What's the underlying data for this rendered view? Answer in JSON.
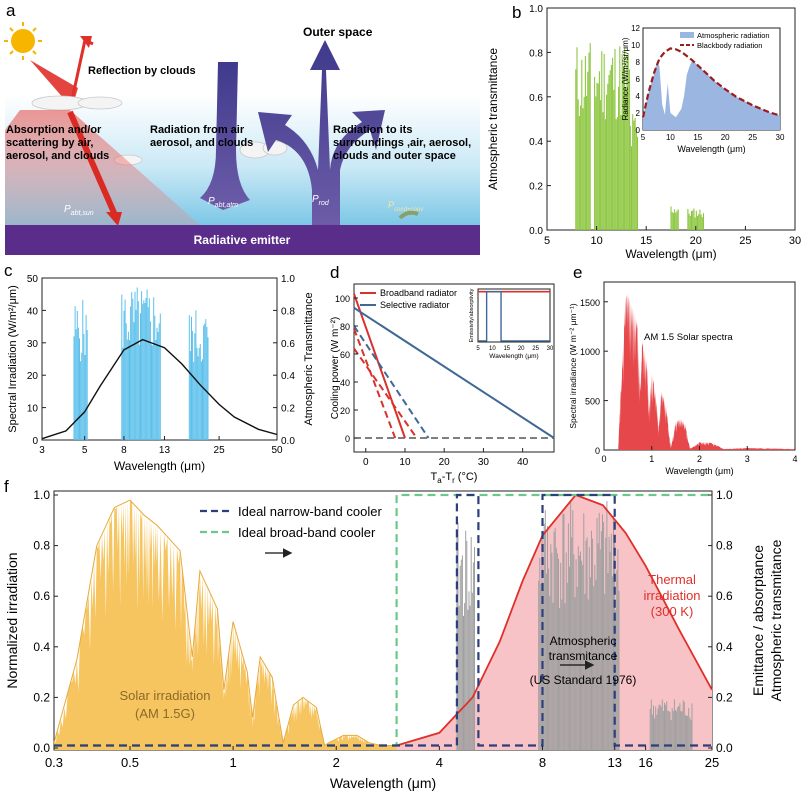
{
  "colors": {
    "sky_top": "#ffffff",
    "sky_bottom": "#8fd0ea",
    "emitter": "#5a2d8a",
    "arrow_purple": "#53489a",
    "sun_red": "#e0302a",
    "green": "#8cc63f",
    "inset_fill": "#9bb6e0",
    "inset_line": "#9b1c1c",
    "cyan": "#5bc0eb",
    "red": "#d9312b",
    "blue": "#3f6896",
    "solar_fill": "#f6c560",
    "solar_line": "#e8a93a",
    "thermal_fill": "#f7c3c7",
    "thermal_line": "#e0302a",
    "grey": "#a0a0a0",
    "navy": "#2b3f7a",
    "green_dash": "#6cc88a"
  },
  "panel_a": {
    "letter": "a",
    "reflection": "Reflection by clouds",
    "outer_space": "Outer space",
    "absorption": [
      "Absorption and/or",
      "scattering by air,",
      "aerosol, and clouds"
    ],
    "radiation_air": [
      "Radiation from air",
      "aerosol, and clouds"
    ],
    "radiation_to": [
      "Radiation to its",
      "surroundings ,air, aerosol,",
      "clouds and outer space"
    ],
    "p_sun": "P",
    "p_sun_sub": "abt,sun",
    "p_atm": "P",
    "p_atm_sub": "abt,atm",
    "p_rod": "P",
    "p_rod_sub": "rod",
    "p_cond": "P",
    "p_cond_sub": "cond+conv",
    "emitter": "Radiative emitter"
  },
  "chart_data": [
    {
      "id": "b",
      "type": "area",
      "letter": "b",
      "xlabel": "Wavelength (μm)",
      "ylabel": "Atmospheric transmittance",
      "xlim": [
        5,
        30
      ],
      "ylim": [
        0,
        1
      ],
      "x_ticks": [
        "5",
        "10",
        "15",
        "20",
        "25",
        "30"
      ],
      "y_ticks": [
        "0.0",
        "0.2",
        "0.4",
        "0.6",
        "0.8",
        "1.0"
      ],
      "series": [
        {
          "name": "Atmospheric transmittance",
          "x": [
            7.9,
            8.5,
            9,
            9.4,
            9.6,
            9.8,
            10.5,
            11,
            12,
            12.8,
            13.2,
            13.8,
            14.2,
            16,
            17.5,
            18,
            19,
            20,
            21
          ],
          "values": [
            0.05,
            0.82,
            0.85,
            0.72,
            0.4,
            0.82,
            0.87,
            0.86,
            0.82,
            0.75,
            0.7,
            0.35,
            0.1,
            0.02,
            0.06,
            0.12,
            0.08,
            0.1,
            0.03
          ]
        }
      ],
      "inset": {
        "type": "line",
        "xlabel": "Wavelength (μm)",
        "ylabel": "Radiance (W/m²/sr/μm)",
        "xlim": [
          5,
          30
        ],
        "ylim": [
          0,
          12
        ],
        "x_ticks": [
          "5",
          "10",
          "15",
          "20",
          "25",
          "30"
        ],
        "y_ticks": [
          "0",
          "2",
          "4",
          "6",
          "8",
          "10",
          "12"
        ],
        "legend": [
          "Atmospheric radiation",
          "Blackbody radiation"
        ],
        "series": [
          {
            "name": "Blackbody radiation",
            "x": [
              5,
              6,
              7,
              8,
              9,
              10,
              11,
              12,
              14,
              16,
              18,
              20,
              22,
              25,
              28,
              30
            ],
            "values": [
              1.5,
              4.4,
              6.7,
              8.4,
              9.2,
              9.6,
              9.5,
              9.2,
              8.2,
              7.0,
              5.8,
              4.8,
              3.9,
              2.9,
              2.1,
              1.7
            ]
          },
          {
            "name": "Atmospheric radiation",
            "x": [
              5,
              6,
              7,
              7.5,
              8,
              8.5,
              9,
              9.5,
              10,
              11,
              12,
              12.5,
              13,
              13.5,
              14,
              16,
              18,
              20,
              22,
              25,
              28,
              30
            ],
            "values": [
              1.5,
              4.4,
              6.6,
              8.0,
              7.5,
              3.0,
              1.8,
              5.5,
              2.0,
              1.5,
              2.5,
              4.0,
              6.5,
              7.5,
              8.2,
              7.0,
              5.8,
              4.8,
              3.9,
              2.9,
              2.1,
              1.7
            ]
          }
        ]
      }
    },
    {
      "id": "c",
      "type": "line",
      "letter": "c",
      "xlabel": "Wavelength (μm)",
      "ylabel": "Spectral Irradiation (W/m²/μm)",
      "ylabel2": "Atmospheric Transmittance",
      "ylim": [
        0,
        50
      ],
      "ylim2": [
        0,
        1
      ],
      "x_ticks": [
        "3",
        "5",
        "8",
        "13",
        "25",
        "50"
      ],
      "y_ticks": [
        "0",
        "10",
        "20",
        "30",
        "40",
        "50"
      ],
      "y2_ticks": [
        "0.0",
        "0.2",
        "0.4",
        "0.6",
        "0.8",
        "1.0"
      ],
      "series": [
        {
          "name": "Blackbody irradiation",
          "x": [
            3,
            4,
            5,
            6,
            8,
            10,
            13,
            16,
            20,
            25,
            30,
            40,
            50
          ],
          "values": [
            0.4,
            2.8,
            8.7,
            16.5,
            27.8,
            31,
            28.5,
            23.5,
            16.9,
            11,
            7.1,
            3.3,
            1.7
          ]
        },
        {
          "name": "Atmospheric transmittance",
          "bands": [
            [
              4.4,
              5.2,
              0.87
            ],
            [
              7.8,
              12.5,
              0.96
            ],
            [
              17.5,
              22,
              0.82
            ]
          ]
        }
      ]
    },
    {
      "id": "d",
      "type": "line",
      "letter": "d",
      "xlabel": "Ta-Tr (°C)",
      "xlabel_main": "T",
      "xlabel_sub1": "a",
      "xlabel_mid": "-T",
      "xlabel_sub2": "r",
      "xlabel_unit": " (°C)",
      "ylabel": "Cooling power (W m⁻²)",
      "xlim": [
        -3,
        48
      ],
      "ylim": [
        -10,
        110
      ],
      "x_ticks": [
        "0",
        "10",
        "20",
        "30",
        "40"
      ],
      "y_ticks": [
        "0",
        "20",
        "40",
        "60",
        "80",
        "100"
      ],
      "legend": [
        "Broadband radiator",
        "Selective radiator"
      ],
      "series": [
        {
          "name": "Broadband radiator",
          "x": [
            -3,
            10
          ],
          "values": [
            103,
            0
          ]
        },
        {
          "name": "Broadband radiator (dashed)",
          "x": [
            -3,
            7.5
          ],
          "values": [
            78,
            0
          ]
        },
        {
          "name": "Selective radiator",
          "x": [
            -3,
            48
          ],
          "values": [
            93,
            0
          ]
        },
        {
          "name": "Selective radiator (dashed 1)",
          "x": [
            -3,
            16
          ],
          "values": [
            80,
            0
          ]
        },
        {
          "name": "Selective radiator (dashed 2)",
          "x": [
            -3,
            13
          ],
          "values": [
            64,
            0
          ]
        }
      ],
      "inset": {
        "ylabel": "Emissivity/absorptivity",
        "xlabel": "Wavelength (μm)",
        "x_ticks": [
          "5",
          "10",
          "15",
          "20",
          "25",
          "30"
        ],
        "ylim": [
          0,
          1
        ]
      }
    },
    {
      "id": "e",
      "type": "area",
      "letter": "e",
      "title": "AM 1.5 Solar spectra",
      "xlabel": "Wavelength (μm)",
      "ylabel": "Spectral irradiance (W m⁻² μm⁻¹)",
      "xlim": [
        0,
        4
      ],
      "ylim": [
        0,
        1700
      ],
      "x_ticks": [
        "0",
        "1",
        "2",
        "3",
        "4"
      ],
      "y_ticks": [
        "0",
        "500",
        "1000",
        "1500"
      ],
      "series": [
        {
          "name": "AM 1.5",
          "x": [
            0.3,
            0.35,
            0.45,
            0.5,
            0.55,
            0.6,
            0.7,
            0.76,
            0.8,
            0.9,
            0.94,
            1.0,
            1.1,
            1.14,
            1.2,
            1.3,
            1.4,
            1.5,
            1.6,
            1.7,
            1.8,
            1.9,
            2.0,
            2.2,
            2.4,
            2.5,
            3.0,
            4.0
          ],
          "values": [
            50,
            600,
            1550,
            1600,
            1500,
            1450,
            1280,
            600,
            1100,
            900,
            400,
            800,
            500,
            200,
            600,
            450,
            20,
            280,
            320,
            260,
            15,
            40,
            80,
            80,
            40,
            10,
            20,
            10
          ]
        }
      ]
    },
    {
      "id": "f",
      "type": "area",
      "letter": "f",
      "xlabel": "Wavelength (μm)",
      "ylabel": "Normalized irradiation",
      "ylabel2a": "Emittance / absorptance",
      "ylabel2b": "Atmospheric transmitance",
      "ylim": [
        0,
        1
      ],
      "x_ticks": [
        "0.3",
        "0.5",
        "1",
        "2",
        "4",
        "8",
        "13",
        "16",
        "25"
      ],
      "y_ticks": [
        "0.0",
        "0.2",
        "0.4",
        "0.6",
        "0.8",
        "1.0"
      ],
      "legend": [
        "Ideal narrow-band cooler",
        "Ideal broad-band cooler"
      ],
      "labels": {
        "thermal": [
          "Thermal",
          "irradiation",
          "(300 K)"
        ],
        "atm": [
          "Atmospheric",
          "transmitance",
          "(US Standard 1976)"
        ],
        "solar": [
          "Solar irradiation",
          "(AM 1.5G)"
        ]
      },
      "series": [
        {
          "name": "Solar irradiation (AM 1.5G)",
          "x": [
            0.3,
            0.35,
            0.4,
            0.45,
            0.5,
            0.55,
            0.6,
            0.7,
            0.76,
            0.8,
            0.9,
            0.94,
            1.0,
            1.1,
            1.14,
            1.2,
            1.3,
            1.4,
            1.5,
            1.6,
            1.75,
            1.85,
            1.9,
            2.1,
            2.3,
            2.5,
            2.7,
            3.0
          ],
          "values": [
            0.02,
            0.35,
            0.8,
            0.95,
            0.98,
            0.92,
            0.88,
            0.78,
            0.36,
            0.7,
            0.55,
            0.23,
            0.5,
            0.3,
            0.12,
            0.36,
            0.28,
            0.02,
            0.17,
            0.2,
            0.16,
            0.01,
            0.02,
            0.05,
            0.05,
            0.02,
            0.01,
            0.01
          ]
        },
        {
          "name": "Thermal irradiation (300 K)",
          "x": [
            3,
            4,
            5,
            6,
            7,
            8,
            10,
            12,
            14,
            16,
            20,
            25
          ],
          "values": [
            0.01,
            0.06,
            0.2,
            0.42,
            0.66,
            0.84,
            1.0,
            0.96,
            0.85,
            0.72,
            0.47,
            0.23
          ]
        },
        {
          "name": "Atmospheric transmitance",
          "bands": [
            [
              4.5,
              5.1,
              0.9
            ],
            [
              7.8,
              13.4,
              0.98
            ],
            [
              16.5,
              22,
              0.2
            ]
          ]
        },
        {
          "name": "Ideal narrow-band cooler",
          "x": [
            0.3,
            4.5,
            4.5,
            5.2,
            5.2,
            8,
            8,
            13,
            13,
            25
          ],
          "values": [
            0.01,
            0.01,
            1.0,
            1.0,
            0.01,
            0.01,
            1.0,
            1.0,
            0.01,
            0.01
          ]
        },
        {
          "name": "Ideal broad-band cooler",
          "x": [
            0.3,
            3,
            3,
            25
          ],
          "values": [
            0.01,
            0.01,
            1.0,
            1.0
          ]
        }
      ]
    }
  ]
}
